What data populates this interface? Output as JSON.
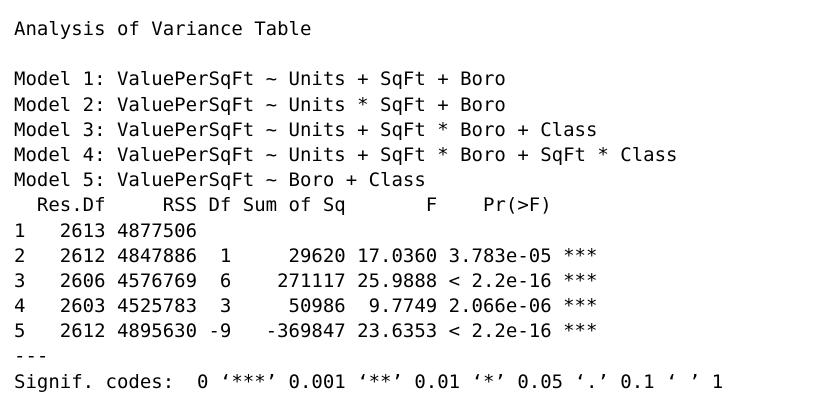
{
  "title": "Analysis of Variance Table",
  "models": [
    "Model 1: ValuePerSqFt ~ Units + SqFt + Boro",
    "Model 2: ValuePerSqFt ~ Units * SqFt + Boro",
    "Model 3: ValuePerSqFt ~ Units + SqFt * Boro + Class",
    "Model 4: ValuePerSqFt ~ Units + SqFt * Boro + SqFt * Class",
    "Model 5: ValuePerSqFt ~ Boro + Class"
  ],
  "table": {
    "header": "  Res.Df     RSS Df Sum of Sq       F    Pr(>F)    ",
    "rows": [
      "1   2613 4877506                                   ",
      "2   2612 4847886  1     29620 17.0360 3.783e-05 ***",
      "3   2606 4576769  6    271117 25.9888 < 2.2e-16 ***",
      "4   2603 4525783  3     50986  9.7749 2.066e-06 ***",
      "5   2612 4895630 -9   -369847 23.6353 < 2.2e-16 ***"
    ]
  },
  "separator": "---",
  "signif_codes": "Signif. codes:  0 ‘***’ 0.001 ‘**’ 0.01 ‘*’ 0.05 ‘.’ 0.1 ‘ ’ 1"
}
